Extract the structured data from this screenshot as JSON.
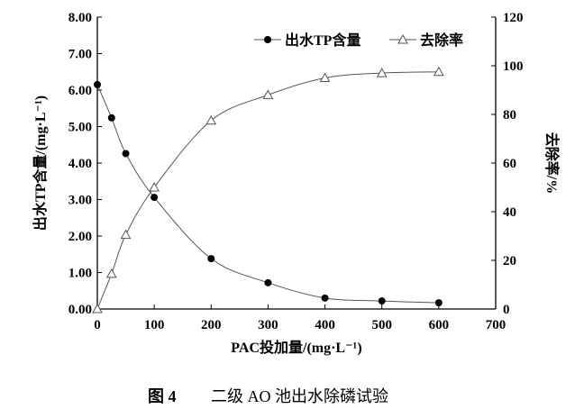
{
  "caption": {
    "figure_no": "图 4",
    "text": "二级 AO 池出水除磷试验"
  },
  "chart_data": {
    "type": "line",
    "xlabel": "PAC投加量/(mg·L⁻¹)",
    "ylabel": "出水TP含量/(mg·L⁻¹)",
    "y2label": "去除率/%",
    "xlim": [
      0,
      700
    ],
    "ylim": [
      0,
      8
    ],
    "y2lim": [
      0,
      120
    ],
    "xticks": [
      "0",
      "100",
      "200",
      "300",
      "400",
      "500",
      "600",
      "700"
    ],
    "yticks": [
      "0.00",
      "1.00",
      "2.00",
      "3.00",
      "4.00",
      "5.00",
      "6.00",
      "7.00",
      "8.00"
    ],
    "y2ticks": [
      "0",
      "20",
      "40",
      "60",
      "80",
      "100",
      "120"
    ],
    "grid": false,
    "legend_placement": "top-right",
    "x": [
      0,
      25,
      50,
      100,
      200,
      300,
      400,
      500,
      600
    ],
    "series": [
      {
        "name": "出水TP含量",
        "axis": "left",
        "marker": "filled-circle",
        "values": [
          6.15,
          5.24,
          4.26,
          3.06,
          1.38,
          0.72,
          0.3,
          0.22,
          0.17
        ]
      },
      {
        "name": "去除率",
        "axis": "right",
        "marker": "open-triangle",
        "values": [
          0,
          14.5,
          30.5,
          50,
          77.5,
          88,
          95,
          97,
          97.5
        ]
      }
    ]
  }
}
